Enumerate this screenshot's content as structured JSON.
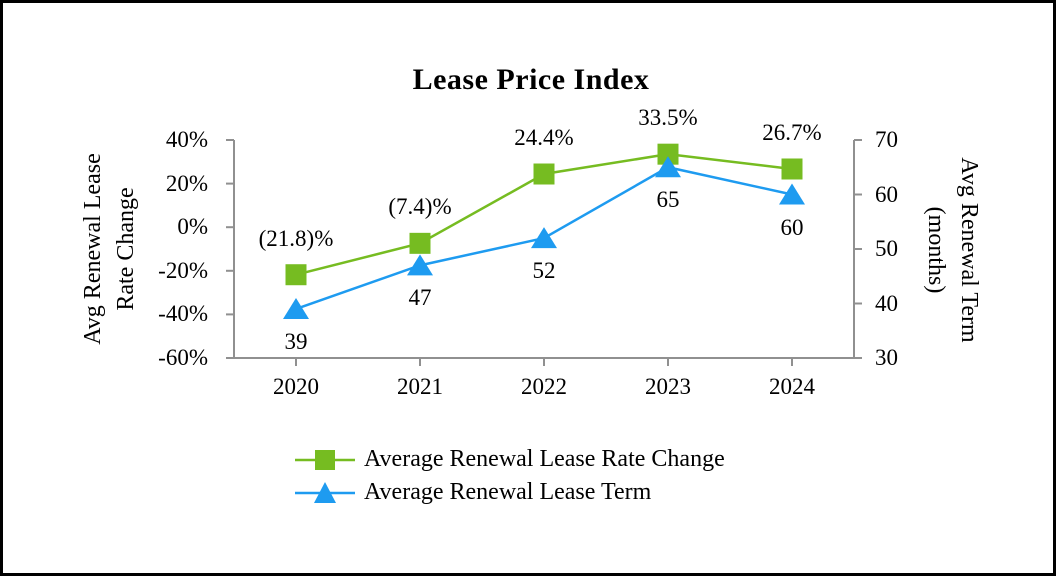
{
  "chart": {
    "title": "Lease Price Index"
  },
  "colors": {
    "rate_change_green": "#76BC21",
    "lease_term_blue": "#1E9BF0",
    "axis_gray": "#909090",
    "text_black": "#000000"
  },
  "chart_data": {
    "type": "line",
    "title": "Lease Price Index",
    "categories": [
      "2020",
      "2021",
      "2022",
      "2023",
      "2024"
    ],
    "series": [
      {
        "name": "Average Renewal Lease Rate Change",
        "axis": "left",
        "marker": "square",
        "color": "#76BC21",
        "values": [
          -21.8,
          -7.4,
          24.4,
          33.5,
          26.7
        ],
        "point_labels": [
          "(21.8)%",
          "(7.4)%",
          "24.4%",
          "33.5%",
          "26.7%"
        ],
        "label_position": "above"
      },
      {
        "name": "Average Renewal Lease Term",
        "axis": "right",
        "marker": "triangle",
        "color": "#1E9BF0",
        "values": [
          39,
          47,
          52,
          65,
          60
        ],
        "point_labels": [
          "39",
          "47",
          "52",
          "65",
          "60"
        ],
        "label_position": "below"
      }
    ],
    "left_axis": {
      "title_lines": [
        "Avg Renewal Lease",
        "Rate Change"
      ],
      "min": -60,
      "max": 40,
      "tick_labels": [
        "40%",
        "20%",
        "0%",
        "-20%",
        "-40%",
        "-60%"
      ],
      "tick_values": [
        40,
        20,
        0,
        -20,
        -40,
        -60
      ]
    },
    "right_axis": {
      "title_lines": [
        "Avg Renewal Term",
        "(months)"
      ],
      "min": 30,
      "max": 70,
      "tick_labels": [
        "70",
        "60",
        "50",
        "40",
        "30"
      ],
      "tick_values": [
        70,
        60,
        50,
        40,
        30
      ]
    },
    "grid": false,
    "legend_position": "bottom"
  }
}
